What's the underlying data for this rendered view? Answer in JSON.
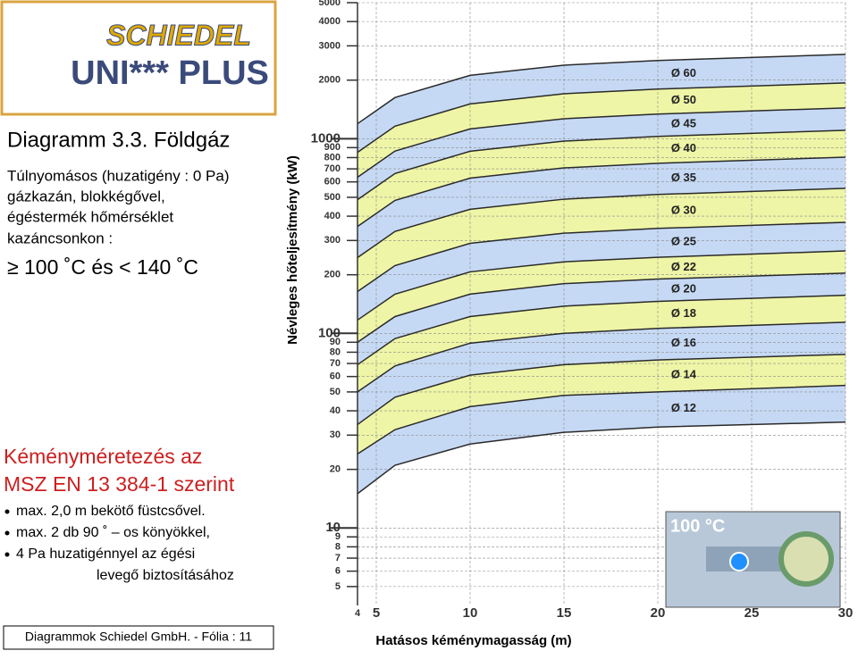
{
  "header": {
    "brand": "SCHIEDEL",
    "product": "UNI*** PLUS"
  },
  "left": {
    "title": "Diagramm 3.3. Földgáz",
    "description": [
      "Túlnyomásos (huzatigény : 0 Pa)",
      "gázkazán, blokkégővel,",
      "égéstermék hőmérséklet",
      "kazáncsonkon :"
    ],
    "condition": "≥ 100 ˚C és < 140 ˚C",
    "heading": [
      "Kéményméretezés az",
      "MSZ EN 13 384-1 szerint"
    ],
    "bullets": [
      "max. 2,0 m bekötő füstcsővel.",
      "max. 2 db 90 ˚ – os könyökkel,",
      "4 Pa huzatigénnyel az égési"
    ],
    "bullet_continuation": "levegő biztosításához"
  },
  "footer": "Diagrammok Schiedel GmbH. - Fólia : 11",
  "chart_data": {
    "type": "area",
    "x_label": "Hatásos kéménymagasság (m)",
    "y_label": "Névleges hőteljesítmény (kW)",
    "log_y": true,
    "grid": true,
    "inset_label": "100 °C",
    "x": [
      4,
      6,
      10,
      15,
      20,
      30
    ],
    "series": [
      {
        "name": "Ø 60",
        "color": "#c6d9f4",
        "values": [
          1194,
          1628,
          2116,
          2387,
          2523,
          2713
        ]
      },
      {
        "name": "Ø 50",
        "color": "#eef5a6",
        "values": [
          851,
          1160,
          1509,
          1702,
          1799,
          1934
        ]
      },
      {
        "name": "Ø 45",
        "color": "#c6d9f4",
        "values": [
          634,
          864,
          1123,
          1267,
          1339,
          1440
        ]
      },
      {
        "name": "Ø 40",
        "color": "#eef5a6",
        "values": [
          486,
          663,
          862,
          972,
          1028,
          1105
        ]
      },
      {
        "name": "Ø 35",
        "color": "#c6d9f4",
        "values": [
          354,
          482,
          627,
          708,
          748,
          804
        ]
      },
      {
        "name": "Ø 30",
        "color": "#eef5a6",
        "values": [
          245,
          334,
          434,
          489,
          517,
          556
        ]
      },
      {
        "name": "Ø 25",
        "color": "#c6d9f4",
        "values": [
          164,
          223,
          290,
          327,
          346,
          372
        ]
      },
      {
        "name": "Ø 22",
        "color": "#eef5a6",
        "values": [
          117,
          159,
          207,
          233,
          246,
          265
        ]
      },
      {
        "name": "Ø 20",
        "color": "#c6d9f4",
        "values": [
          90,
          122,
          159,
          180,
          190,
          204
        ]
      },
      {
        "name": "Ø 18",
        "color": "#eef5a6",
        "values": [
          69,
          94,
          122,
          138,
          146,
          157
        ]
      },
      {
        "name": "Ø 16",
        "color": "#c6d9f4",
        "values": [
          50,
          68,
          89,
          100,
          106,
          114
        ]
      },
      {
        "name": "Ø 14",
        "color": "#eef5a6",
        "values": [
          34,
          47,
          61,
          69,
          73,
          78
        ]
      },
      {
        "name": "Ø 12",
        "color": "#c6d9f4",
        "values": [
          24,
          32,
          42,
          48,
          50,
          54
        ]
      }
    ],
    "base": [
      15,
      21,
      27,
      31,
      33,
      35
    ],
    "xlim": [
      4,
      30
    ],
    "ylim": [
      4,
      5000
    ],
    "xticks": [
      4,
      5,
      10,
      15,
      20,
      25,
      30
    ],
    "yticks": [
      5000,
      4000,
      3000,
      2000,
      1000,
      900,
      800,
      700,
      600,
      500,
      400,
      300,
      200,
      100,
      90,
      80,
      70,
      60,
      50,
      40,
      30,
      20,
      10,
      9,
      8,
      7,
      6,
      5
    ]
  }
}
